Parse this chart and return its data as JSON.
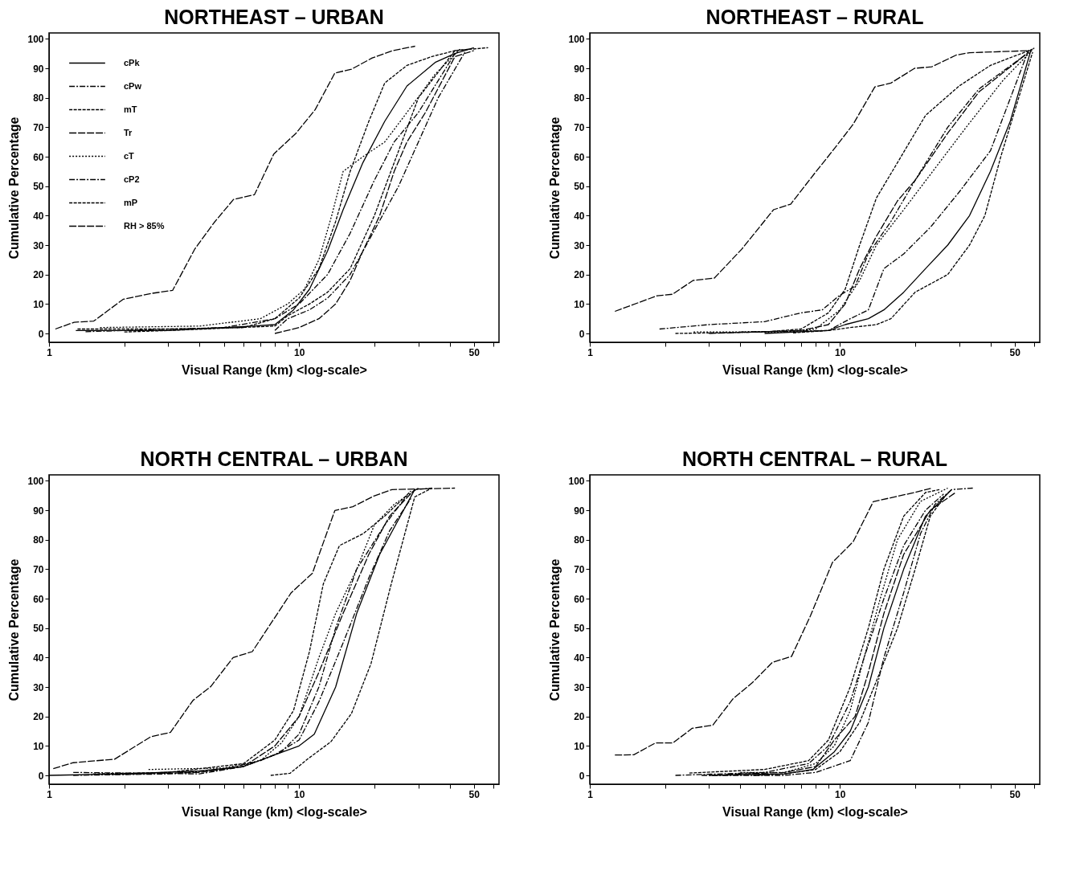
{
  "chart_data": [
    {
      "type": "line",
      "title": "NORTHEAST – URBAN",
      "xlabel": "Visual Range (km) <log-scale>",
      "ylabel": "Cumulative Percentage",
      "log": "x",
      "grid": false,
      "legend": "top left",
      "marker": "none",
      "xlim": [
        1,
        63
      ],
      "xticks": [
        1,
        {
          "value": 2,
          "label": null
        },
        {
          "value": 3,
          "label": null
        },
        {
          "value": 4,
          "label": null
        },
        {
          "value": 5,
          "label": null
        },
        {
          "value": 6,
          "label": null
        },
        {
          "value": 7,
          "label": null
        },
        {
          "value": 8,
          "label": null
        },
        {
          "value": 9,
          "label": null
        },
        10,
        {
          "value": 20,
          "label": null
        },
        {
          "value": 30,
          "label": null
        },
        {
          "value": 40,
          "label": null
        },
        50,
        {
          "value": 60,
          "label": null
        }
      ],
      "ylim": [
        -3,
        102
      ],
      "yticks": [
        0,
        10,
        20,
        30,
        40,
        50,
        60,
        70,
        80,
        90,
        100
      ],
      "series": [
        {
          "name": "cPk",
          "color": "#000000",
          "line_style": "solid",
          "x": [
            1.28,
            3,
            6.5,
            8,
            9.5,
            11,
            13,
            15,
            18,
            22,
            27,
            35,
            42,
            50
          ],
          "values": [
            1,
            1,
            2.5,
            3,
            8,
            15,
            28,
            42,
            58,
            72,
            84,
            92,
            95,
            97
          ]
        },
        {
          "name": "cPw",
          "color": "#000000",
          "line_style": "dashdot",
          "x": [
            1.4,
            5,
            8,
            10,
            13,
            16,
            20,
            24,
            30,
            42
          ],
          "values": [
            0.6,
            2,
            5,
            10,
            20,
            34,
            52,
            65,
            75,
            95
          ]
        },
        {
          "name": "mT",
          "color": "#000000",
          "line_style": "dashed",
          "x": [
            1.3,
            3,
            6,
            8,
            10,
            12,
            14,
            16,
            19,
            22,
            27,
            34,
            42,
            48
          ],
          "values": [
            1.5,
            1.5,
            2,
            5,
            12,
            22,
            38,
            55,
            72,
            85,
            91,
            94,
            96,
            96.5
          ]
        },
        {
          "name": "Tr",
          "color": "#000000",
          "line_style": "longdash",
          "x": [
            8,
            10,
            12,
            14,
            16,
            18,
            21,
            24,
            27,
            32,
            42,
            50
          ],
          "values": [
            0,
            2,
            5,
            10,
            18,
            28,
            40,
            55,
            65,
            75,
            94,
            96
          ]
        },
        {
          "name": "cT",
          "color": "#000000",
          "line_style": "dotted",
          "x": [
            1.6,
            4,
            7,
            9,
            10.5,
            12,
            13.5,
            15,
            18,
            22,
            27,
            35,
            44
          ],
          "values": [
            2,
            2.5,
            5,
            10,
            15,
            25,
            40,
            55,
            60,
            65,
            75,
            88,
            96.5
          ]
        },
        {
          "name": "cP2",
          "color": "#000000",
          "line_style": "dashdot",
          "x": [
            8,
            9,
            11,
            13,
            16,
            20,
            25,
            30,
            36,
            46
          ],
          "values": [
            1,
            5,
            8,
            12,
            20,
            35,
            50,
            65,
            80,
            95.5
          ]
        },
        {
          "name": "mP",
          "color": "#000000",
          "line_style": "dashed",
          "x": [
            2,
            3,
            8,
            9,
            11,
            13,
            16,
            20,
            25,
            30,
            42,
            57
          ],
          "values": [
            0.5,
            1,
            2.5,
            6,
            10,
            14,
            22,
            40,
            62,
            80,
            96,
            97
          ]
        },
        {
          "name": "RH > 85%",
          "color": "#000000",
          "line_style": "longdash",
          "x": [
            1.06,
            1.26,
            1.51,
            1.98,
            2.57,
            3.12,
            3.83,
            4.58,
            5.47,
            6.63,
            7.92,
            9.73,
            11.6,
            13.9,
            16.2,
            19.6,
            23.7,
            29.1
          ],
          "values": [
            1.5,
            3.8,
            4.2,
            11.6,
            13.6,
            14.6,
            28.7,
            37.7,
            45.5,
            47.1,
            60.9,
            68,
            76,
            88.4,
            89.7,
            93.5,
            96,
            97.5
          ]
        }
      ]
    },
    {
      "type": "line",
      "title": "NORTHEAST – RURAL",
      "xlabel": "Visual Range (km) <log-scale>",
      "ylabel": "Cumulative Percentage",
      "log": "x",
      "grid": false,
      "legend": "top left",
      "marker": "none",
      "xlim": [
        1,
        63
      ],
      "xticks": [
        1,
        {
          "value": 2,
          "label": null
        },
        {
          "value": 3,
          "label": null
        },
        {
          "value": 4,
          "label": null
        },
        {
          "value": 5,
          "label": null
        },
        {
          "value": 6,
          "label": null
        },
        {
          "value": 7,
          "label": null
        },
        {
          "value": 8,
          "label": null
        },
        {
          "value": 9,
          "label": null
        },
        10,
        {
          "value": 20,
          "label": null
        },
        {
          "value": 30,
          "label": null
        },
        {
          "value": 40,
          "label": null
        },
        50,
        {
          "value": 60,
          "label": null
        }
      ],
      "ylim": [
        -3,
        102
      ],
      "yticks": [
        0,
        10,
        20,
        30,
        40,
        50,
        60,
        70,
        80,
        90,
        100
      ],
      "series": [
        {
          "name": "cPk",
          "color": "#000000",
          "line_style": "solid",
          "x": [
            5,
            9,
            10.5,
            13,
            15,
            18,
            22,
            27,
            33,
            40,
            48,
            58
          ],
          "values": [
            0,
            1,
            3,
            5,
            8,
            14,
            22,
            30,
            40,
            55,
            72,
            96
          ]
        },
        {
          "name": "cPw",
          "color": "#000000",
          "line_style": "dashdot",
          "x": [
            1.9,
            3,
            5,
            7,
            8.5,
            10,
            11.5,
            13,
            16,
            20,
            27,
            36,
            56
          ],
          "values": [
            1.5,
            3,
            4,
            7,
            8,
            13,
            16,
            27,
            38,
            52,
            70,
            83,
            95
          ]
        },
        {
          "name": "mT",
          "color": "#000000",
          "line_style": "dashed",
          "x": [
            2.2,
            5,
            7,
            9,
            10.5,
            12,
            14,
            17,
            22,
            30,
            40,
            59
          ],
          "values": [
            0,
            0.5,
            1.5,
            7,
            15,
            30,
            46,
            58,
            74,
            84,
            91,
            96.5
          ]
        },
        {
          "name": "Tr",
          "color": "#000000",
          "line_style": "longdash",
          "x": [
            3,
            7,
            9,
            10.5,
            12,
            14,
            17,
            20,
            27,
            36,
            57
          ],
          "values": [
            0,
            1,
            3,
            10,
            22,
            33,
            45,
            52,
            68,
            82,
            95.5
          ]
        },
        {
          "name": "cT",
          "color": "#000000",
          "line_style": "dotted",
          "x": [
            2.6,
            6,
            8,
            10,
            12,
            14,
            18,
            24,
            32,
            45,
            60
          ],
          "values": [
            0.5,
            0.5,
            1.5,
            8,
            18,
            30,
            42,
            56,
            70,
            86,
            97
          ]
        },
        {
          "name": "cP2",
          "color": "#000000",
          "line_style": "dashdot",
          "x": [
            4,
            9,
            11,
            13,
            15,
            18,
            23,
            30,
            40,
            57
          ],
          "values": [
            0.5,
            1,
            5,
            8,
            22,
            27,
            36,
            48,
            62,
            96.5
          ]
        },
        {
          "name": "mP",
          "color": "#000000",
          "line_style": "dashed",
          "x": [
            6.5,
            9,
            11,
            14,
            16,
            20,
            27,
            33,
            38,
            44,
            59
          ],
          "values": [
            0.2,
            1,
            2,
            3,
            5,
            14,
            20,
            30,
            40,
            60,
            95.5
          ]
        },
        {
          "name": "RH > 85%",
          "color": "#000000",
          "line_style": "longdash",
          "x": [
            1.26,
            1.86,
            2.14,
            2.59,
            3.15,
            4.05,
            5.43,
            6.36,
            7.87,
            9.48,
            11.3,
            13.8,
            16,
            19.9,
            23.3,
            29.2,
            33,
            58
          ],
          "values": [
            7.5,
            12.8,
            13.3,
            18,
            18.8,
            28.6,
            42,
            43.9,
            54,
            62.6,
            71,
            83.7,
            85,
            90,
            90.5,
            94.5,
            95.3,
            96
          ]
        }
      ]
    },
    {
      "type": "line",
      "title": "NORTH CENTRAL – URBAN",
      "xlabel": "Visual Range (km) <log-scale>",
      "ylabel": "Cumulative Percentage",
      "log": "x",
      "grid": false,
      "legend": "top left",
      "marker": "none",
      "xlim": [
        1,
        63
      ],
      "xticks": [
        1,
        {
          "value": 2,
          "label": null
        },
        {
          "value": 3,
          "label": null
        },
        {
          "value": 4,
          "label": null
        },
        {
          "value": 5,
          "label": null
        },
        {
          "value": 6,
          "label": null
        },
        {
          "value": 7,
          "label": null
        },
        {
          "value": 8,
          "label": null
        },
        {
          "value": 9,
          "label": null
        },
        10,
        {
          "value": 20,
          "label": null
        },
        {
          "value": 30,
          "label": null
        },
        {
          "value": 40,
          "label": null
        },
        50,
        {
          "value": 60,
          "label": null
        }
      ],
      "ylim": [
        -3,
        102
      ],
      "yticks": [
        0,
        10,
        20,
        30,
        40,
        50,
        60,
        70,
        80,
        90,
        100
      ],
      "series": [
        {
          "name": "cPk",
          "color": "#000000",
          "line_style": "solid",
          "x": [
            1,
            2,
            4,
            6,
            8,
            10,
            11.5,
            14,
            17,
            21,
            29
          ],
          "values": [
            0,
            0.5,
            1.5,
            3,
            7,
            10,
            14,
            30,
            55,
            75,
            97
          ]
        },
        {
          "name": "cPw",
          "color": "#000000",
          "line_style": "dashdot",
          "x": [
            1.25,
            3,
            5,
            7,
            8.5,
            10,
            12,
            14,
            17,
            22,
            27
          ],
          "values": [
            0,
            0.5,
            2,
            5,
            8,
            14,
            30,
            50,
            70,
            85,
            95
          ]
        },
        {
          "name": "mT",
          "color": "#000000",
          "line_style": "dashed",
          "x": [
            1.5,
            3,
            6,
            8,
            9.5,
            11,
            12.5,
            14.5,
            18,
            22,
            28
          ],
          "values": [
            0.5,
            1,
            4,
            12,
            22,
            42,
            65,
            78,
            82,
            88,
            96.5
          ]
        },
        {
          "name": "Tr",
          "color": "#000000",
          "line_style": "longdash",
          "x": [
            1.8,
            4,
            6,
            8,
            10,
            12,
            15,
            19,
            23,
            29,
            34
          ],
          "values": [
            0.3,
            1,
            3,
            10,
            20,
            35,
            55,
            75,
            88,
            97,
            97.5
          ]
        },
        {
          "name": "cT",
          "color": "#000000",
          "line_style": "dotted",
          "x": [
            2.5,
            5,
            7,
            8.5,
            10,
            12,
            14,
            17,
            20,
            24,
            30
          ],
          "values": [
            2,
            2.5,
            5,
            11,
            20,
            40,
            55,
            70,
            85,
            92,
            97.5
          ]
        },
        {
          "name": "cP2",
          "color": "#000000",
          "line_style": "dashdot",
          "x": [
            1.25,
            4,
            6,
            8,
            10,
            12,
            15,
            19,
            23,
            28
          ],
          "values": [
            1,
            0.5,
            3,
            7,
            12,
            25,
            45,
            67,
            83,
            94
          ]
        },
        {
          "name": "mP",
          "color": "#000000",
          "line_style": "dashed",
          "x": [
            7.7,
            9.2,
            10.8,
            13.4,
            16.2,
            19.4,
            23.2,
            29,
            34
          ],
          "values": [
            0,
            0.7,
            5.5,
            11.4,
            21,
            38,
            64,
            94.5,
            97.5
          ]
        },
        {
          "name": "RH > 85%",
          "color": "#000000",
          "line_style": "longdash",
          "x": [
            1.04,
            1.25,
            1.83,
            2.55,
            3.06,
            3.76,
            4.43,
            5.45,
            6.5,
            9.3,
            11.3,
            13.9,
            16.4,
            19.9,
            23.5,
            42
          ],
          "values": [
            2.3,
            4.3,
            5.5,
            13.1,
            14.6,
            25.4,
            30.1,
            40,
            42,
            62,
            68.6,
            89.9,
            91.2,
            94.8,
            97,
            97.5
          ]
        }
      ]
    },
    {
      "type": "line",
      "title": "NORTH CENTRAL – RURAL",
      "xlabel": "Visual Range (km) <log-scale>",
      "ylabel": "Cumulative Percentage",
      "log": "x",
      "grid": false,
      "legend": "top left",
      "marker": "none",
      "xlim": [
        1,
        63
      ],
      "xticks": [
        1,
        {
          "value": 2,
          "label": null
        },
        {
          "value": 3,
          "label": null
        },
        {
          "value": 4,
          "label": null
        },
        {
          "value": 5,
          "label": null
        },
        {
          "value": 6,
          "label": null
        },
        {
          "value": 7,
          "label": null
        },
        {
          "value": 8,
          "label": null
        },
        {
          "value": 9,
          "label": null
        },
        10,
        {
          "value": 20,
          "label": null
        },
        {
          "value": 30,
          "label": null
        },
        {
          "value": 40,
          "label": null
        },
        50,
        {
          "value": 60,
          "label": null
        }
      ],
      "ylim": [
        -3,
        102
      ],
      "yticks": [
        0,
        10,
        20,
        30,
        40,
        50,
        60,
        70,
        80,
        90,
        100
      ],
      "series": [
        {
          "name": "cPk",
          "color": "#000000",
          "line_style": "solid",
          "x": [
            3,
            6,
            7.8,
            9.5,
            11,
            13,
            15,
            18,
            22,
            28
          ],
          "values": [
            0,
            0.5,
            2,
            8,
            15,
            30,
            50,
            70,
            88,
            97
          ]
        },
        {
          "name": "cPw",
          "color": "#000000",
          "line_style": "dashdot",
          "x": [
            2.2,
            5,
            7.5,
            9,
            11,
            12.5,
            15,
            18,
            22,
            26
          ],
          "values": [
            0,
            1,
            4,
            10,
            25,
            40,
            60,
            78,
            90,
            95.5
          ]
        },
        {
          "name": "mT",
          "color": "#000000",
          "line_style": "dashed",
          "x": [
            2.5,
            5,
            7.5,
            9,
            11,
            13,
            15,
            18,
            22,
            25
          ],
          "values": [
            0.8,
            2,
            5,
            12,
            30,
            50,
            70,
            88,
            96,
            97
          ]
        },
        {
          "name": "Tr",
          "color": "#000000",
          "line_style": "longdash",
          "x": [
            3.5,
            6,
            8,
            9.5,
            11.5,
            13,
            15,
            18,
            23,
            29
          ],
          "values": [
            0.3,
            1,
            3,
            12,
            20,
            35,
            55,
            75,
            90,
            96
          ]
        },
        {
          "name": "cT",
          "color": "#000000",
          "line_style": "dotted",
          "x": [
            4,
            6,
            8,
            9.5,
            11,
            12.5,
            14.5,
            17,
            21,
            27
          ],
          "values": [
            1,
            1,
            4,
            10,
            22,
            40,
            60,
            80,
            93,
            97.5
          ]
        },
        {
          "name": "cP2",
          "color": "#000000",
          "line_style": "dashdot",
          "x": [
            2.8,
            6,
            8,
            11,
            13,
            15,
            18,
            21,
            24,
            28,
            34
          ],
          "values": [
            0,
            0,
            1,
            5,
            18,
            40,
            62,
            82,
            92,
            97,
            97.5
          ]
        },
        {
          "name": "mP",
          "color": "#000000",
          "line_style": "dashed",
          "x": [
            4.5,
            6,
            8,
            10,
            12,
            14,
            17,
            20,
            23,
            27
          ],
          "values": [
            0,
            0.5,
            2,
            8,
            18,
            32,
            50,
            70,
            88,
            96
          ]
        },
        {
          "name": "RH > 85%",
          "color": "#000000",
          "line_style": "longdash",
          "x": [
            1.26,
            1.5,
            1.83,
            2.15,
            2.57,
            3.1,
            3.74,
            4.46,
            5.38,
            6.41,
            7.63,
            9.34,
            11.3,
            13.6,
            19.6,
            23.1
          ],
          "values": [
            6.9,
            7,
            11,
            11,
            16,
            17,
            26,
            31.4,
            38.4,
            40.4,
            54.2,
            72.3,
            79.3,
            92.9,
            95.9,
            97.4
          ]
        }
      ]
    }
  ]
}
